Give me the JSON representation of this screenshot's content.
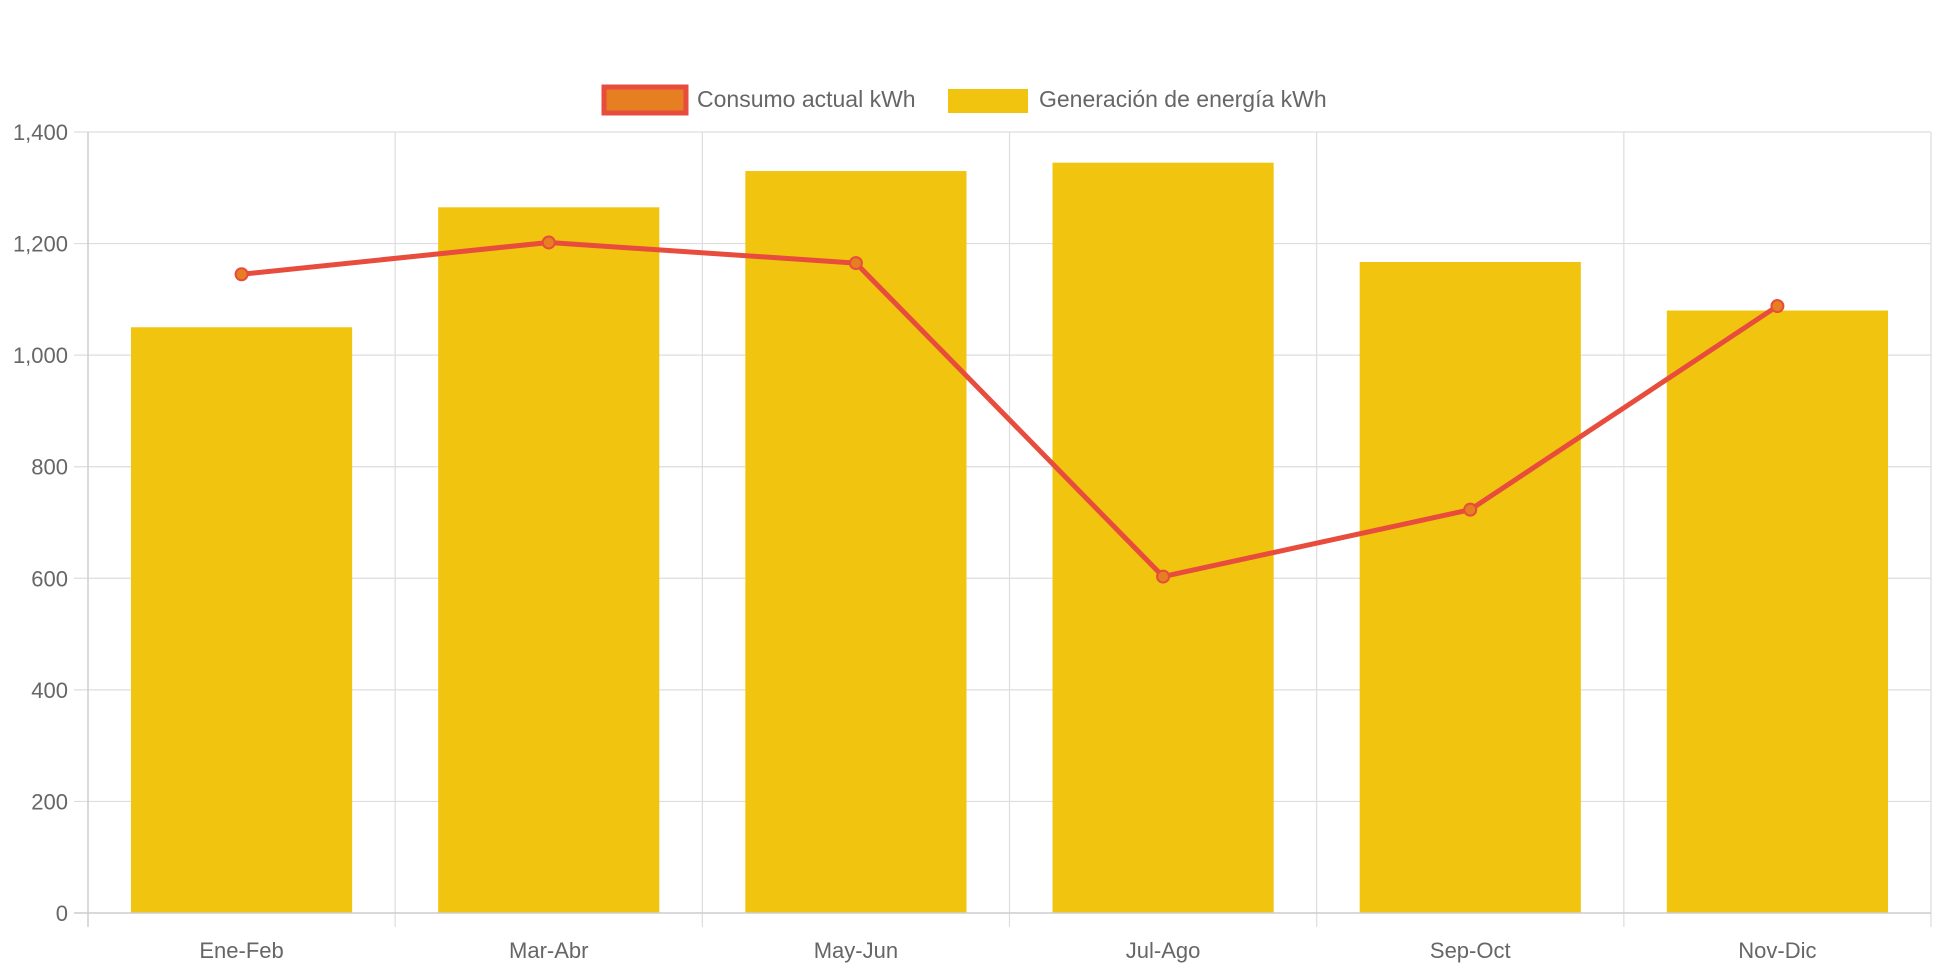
{
  "chart_data": {
    "type": "bar",
    "title": "",
    "xlabel": "",
    "ylabel": "",
    "categories": [
      "Ene-Feb",
      "Mar-Abr",
      "May-Jun",
      "Jul-Ago",
      "Sep-Oct",
      "Nov-Dic"
    ],
    "ylim": [
      0,
      1400
    ],
    "yticks": [
      0,
      200,
      400,
      600,
      800,
      1000,
      1200,
      1400
    ],
    "ytick_labels": [
      "0",
      "200",
      "400",
      "600",
      "800",
      "1,000",
      "1,200",
      "1,400"
    ],
    "grid": true,
    "legend_position": "top-center",
    "series": [
      {
        "name": "Consumo actual kWh",
        "type": "line",
        "color": "#e74c3c",
        "marker_fill": "#e67e22",
        "values": [
          1145,
          1202,
          1165,
          603,
          723,
          1088
        ]
      },
      {
        "name": "Generación de energía kWh",
        "type": "bar",
        "color": "#f1c40f",
        "values": [
          1050,
          1265,
          1330,
          1345,
          1167,
          1080
        ]
      }
    ]
  }
}
